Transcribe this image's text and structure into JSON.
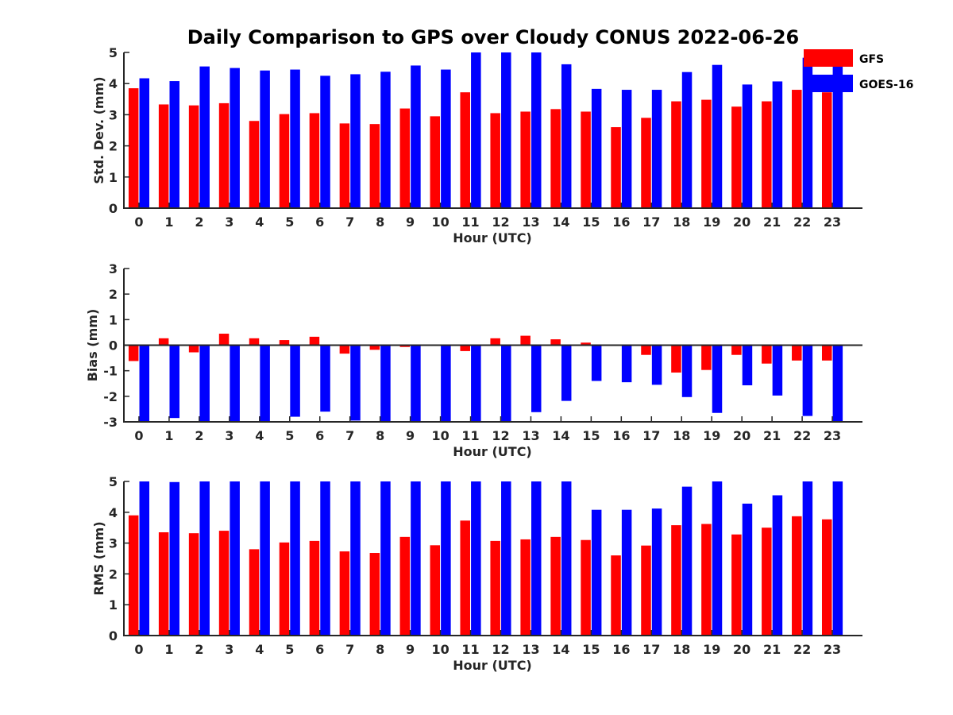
{
  "title": "Daily Comparison to GPS over Cloudy CONUS 2022-06-26",
  "colors": {
    "GFS": "#ff0000",
    "GOES-16": "#0000ff",
    "axis": "#262626"
  },
  "legend": {
    "placement": "top-right",
    "entries": [
      "GFS",
      "GOES-16"
    ]
  },
  "chart_data": [
    {
      "type": "bar",
      "ylabel": "Std. Dev. (mm)",
      "xlabel": "Hour (UTC)",
      "ylim": [
        0,
        5
      ],
      "yticks": [
        0,
        1,
        2,
        3,
        4,
        5
      ],
      "categories": [
        "0",
        "1",
        "2",
        "3",
        "4",
        "5",
        "6",
        "7",
        "8",
        "9",
        "10",
        "11",
        "12",
        "13",
        "14",
        "15",
        "16",
        "17",
        "18",
        "19",
        "20",
        "21",
        "22",
        "23"
      ],
      "series": [
        {
          "name": "GFS",
          "values": [
            3.85,
            3.33,
            3.3,
            3.37,
            2.8,
            3.02,
            3.05,
            2.72,
            2.7,
            3.2,
            2.95,
            3.72,
            3.05,
            3.1,
            3.18,
            3.1,
            2.6,
            2.9,
            3.43,
            3.48,
            3.26,
            3.43,
            3.8,
            3.72
          ]
        },
        {
          "name": "GOES-16",
          "values": [
            4.17,
            4.08,
            4.55,
            4.5,
            4.42,
            4.45,
            4.25,
            4.3,
            4.38,
            4.58,
            4.45,
            5.0,
            5.0,
            5.0,
            4.62,
            3.83,
            3.8,
            3.8,
            4.37,
            4.6,
            3.97,
            4.07,
            4.83,
            4.7
          ]
        }
      ]
    },
    {
      "type": "bar",
      "ylabel": "Bias (mm)",
      "xlabel": "Hour (UTC)",
      "ylim": [
        -3,
        3
      ],
      "yticks": [
        -3,
        -2,
        -1,
        0,
        1,
        2,
        3
      ],
      "zero_line": true,
      "categories": [
        "0",
        "1",
        "2",
        "3",
        "4",
        "5",
        "6",
        "7",
        "8",
        "9",
        "10",
        "11",
        "12",
        "13",
        "14",
        "15",
        "16",
        "17",
        "18",
        "19",
        "20",
        "21",
        "22",
        "23"
      ],
      "series": [
        {
          "name": "GFS",
          "values": [
            -0.62,
            0.27,
            -0.28,
            0.45,
            0.27,
            0.2,
            0.33,
            -0.33,
            -0.18,
            -0.07,
            0.02,
            -0.23,
            0.27,
            0.37,
            0.23,
            0.1,
            0.02,
            -0.38,
            -1.07,
            -0.97,
            -0.38,
            -0.72,
            -0.6,
            -0.6
          ]
        },
        {
          "name": "GOES-16",
          "values": [
            -3.0,
            -2.85,
            -3.0,
            -3.0,
            -3.0,
            -2.8,
            -2.6,
            -2.95,
            -3.0,
            -3.0,
            -3.0,
            -3.0,
            -3.0,
            -2.62,
            -2.18,
            -1.4,
            -1.45,
            -1.55,
            -2.03,
            -2.65,
            -1.57,
            -1.97,
            -2.77,
            -3.0
          ]
        }
      ]
    },
    {
      "type": "bar",
      "ylabel": "RMS (mm)",
      "xlabel": "Hour (UTC)",
      "ylim": [
        0,
        5
      ],
      "yticks": [
        0,
        1,
        2,
        3,
        4,
        5
      ],
      "categories": [
        "0",
        "1",
        "2",
        "3",
        "4",
        "5",
        "6",
        "7",
        "8",
        "9",
        "10",
        "11",
        "12",
        "13",
        "14",
        "15",
        "16",
        "17",
        "18",
        "19",
        "20",
        "21",
        "22",
        "23"
      ],
      "series": [
        {
          "name": "GFS",
          "values": [
            3.9,
            3.35,
            3.32,
            3.4,
            2.8,
            3.02,
            3.07,
            2.73,
            2.68,
            3.2,
            2.93,
            3.73,
            3.07,
            3.12,
            3.2,
            3.1,
            2.6,
            2.92,
            3.58,
            3.62,
            3.28,
            3.5,
            3.87,
            3.77
          ]
        },
        {
          "name": "GOES-16",
          "values": [
            5.0,
            4.98,
            5.0,
            5.0,
            5.0,
            5.0,
            5.0,
            5.0,
            5.0,
            5.0,
            5.0,
            5.0,
            5.0,
            5.0,
            5.0,
            4.08,
            4.08,
            4.12,
            4.83,
            5.0,
            4.28,
            4.55,
            5.0,
            5.0
          ]
        }
      ]
    }
  ]
}
